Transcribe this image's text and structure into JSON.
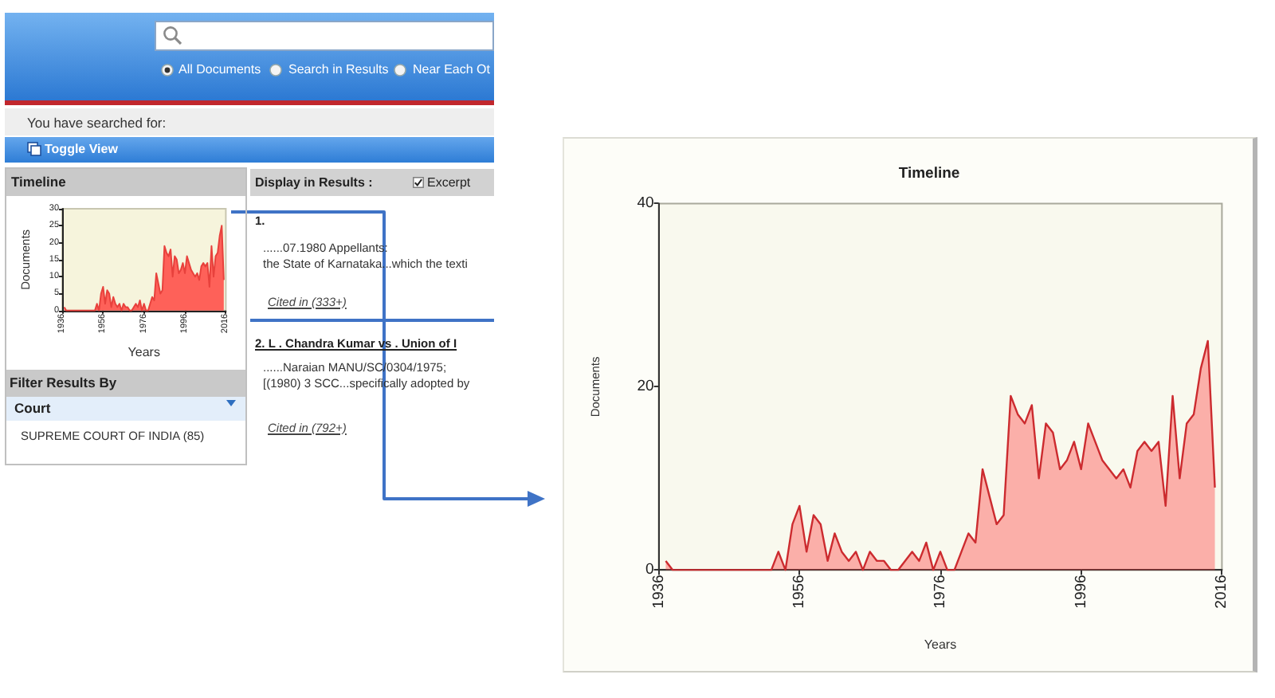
{
  "chart_data": [
    {
      "type": "other",
      "annotations": [
        "All Documents",
        "Search in Results",
        "Near Each Ot",
        "You have searched for:",
        "Toggle View",
        "Display in Results :",
        "Excerpt",
        "1.",
        "......07.1980 Appellants:",
        "the State of Karnataka...which the texti",
        "Cited in (333+)",
        "2. L . Chandra Kumar vs . Union of I",
        "......Naraian MANU/SC/0304/1975;",
        "[(1980) 3 SCC...specifically adopted by",
        "Cited in (792+)",
        "Filter Results By",
        "Court",
        "SUPREME COURT OF INDIA (85)"
      ]
    },
    {
      "type": "area",
      "title": "Timeline",
      "xlabel": "Years",
      "ylabel": "Documents",
      "color": "#e8413c",
      "x": [
        1937,
        1938,
        1939,
        1940,
        1941,
        1942,
        1943,
        1944,
        1945,
        1946,
        1947,
        1948,
        1949,
        1950,
        1951,
        1952,
        1953,
        1954,
        1955,
        1956,
        1957,
        1958,
        1959,
        1960,
        1961,
        1962,
        1963,
        1964,
        1965,
        1966,
        1967,
        1968,
        1969,
        1970,
        1971,
        1972,
        1973,
        1974,
        1975,
        1976,
        1977,
        1978,
        1979,
        1980,
        1981,
        1982,
        1983,
        1984,
        1985,
        1986,
        1987,
        1988,
        1989,
        1990,
        1991,
        1992,
        1993,
        1994,
        1995,
        1996,
        1997,
        1998,
        1999,
        2000,
        2001,
        2002,
        2003,
        2004,
        2005,
        2006,
        2007,
        2008,
        2009,
        2010,
        2011,
        2012,
        2013,
        2014,
        2015
      ],
      "values": [
        1,
        0,
        0,
        0,
        0,
        0,
        0,
        0,
        0,
        0,
        0,
        0,
        0,
        0,
        0,
        0,
        2,
        0,
        5,
        7,
        2,
        6,
        5,
        1,
        4,
        2,
        1,
        2,
        0,
        2,
        1,
        1,
        0,
        0,
        1,
        2,
        1,
        3,
        0,
        2,
        0,
        0,
        2,
        4,
        3,
        11,
        8,
        5,
        6,
        19,
        17,
        16,
        18,
        10,
        16,
        15,
        11,
        12,
        14,
        11,
        16,
        14,
        12,
        11,
        10,
        11,
        9,
        13,
        14,
        13,
        14,
        7,
        19,
        10,
        16,
        17,
        22,
        25,
        9
      ],
      "xlim": [
        1936,
        2016
      ],
      "xticks": [
        1936,
        1956,
        1976,
        1996,
        2016
      ],
      "ylim": [
        0,
        30
      ],
      "yticks": [
        0,
        5,
        10,
        15,
        20,
        25,
        30
      ]
    },
    {
      "type": "area",
      "title": "Timeline",
      "xlabel": "Years",
      "ylabel": "Documents",
      "color": "#cc2b2f",
      "x": [
        1937,
        1938,
        1939,
        1940,
        1941,
        1942,
        1943,
        1944,
        1945,
        1946,
        1947,
        1948,
        1949,
        1950,
        1951,
        1952,
        1953,
        1954,
        1955,
        1956,
        1957,
        1958,
        1959,
        1960,
        1961,
        1962,
        1963,
        1964,
        1965,
        1966,
        1967,
        1968,
        1969,
        1970,
        1971,
        1972,
        1973,
        1974,
        1975,
        1976,
        1977,
        1978,
        1979,
        1980,
        1981,
        1982,
        1983,
        1984,
        1985,
        1986,
        1987,
        1988,
        1989,
        1990,
        1991,
        1992,
        1993,
        1994,
        1995,
        1996,
        1997,
        1998,
        1999,
        2000,
        2001,
        2002,
        2003,
        2004,
        2005,
        2006,
        2007,
        2008,
        2009,
        2010,
        2011,
        2012,
        2013,
        2014,
        2015
      ],
      "values": [
        1,
        0,
        0,
        0,
        0,
        0,
        0,
        0,
        0,
        0,
        0,
        0,
        0,
        0,
        0,
        0,
        2,
        0,
        5,
        7,
        2,
        6,
        5,
        1,
        4,
        2,
        1,
        2,
        0,
        2,
        1,
        1,
        0,
        0,
        1,
        2,
        1,
        3,
        0,
        2,
        0,
        0,
        2,
        4,
        3,
        11,
        8,
        5,
        6,
        19,
        17,
        16,
        18,
        10,
        16,
        15,
        11,
        12,
        14,
        11,
        16,
        14,
        12,
        11,
        10,
        11,
        9,
        13,
        14,
        13,
        14,
        7,
        19,
        10,
        16,
        17,
        22,
        25,
        9
      ],
      "xlim": [
        1936,
        2016
      ],
      "xticks": [
        1936,
        1956,
        1976,
        1996,
        2016
      ],
      "ylim": [
        0,
        40
      ],
      "yticks": [
        0,
        20,
        40
      ]
    }
  ]
}
